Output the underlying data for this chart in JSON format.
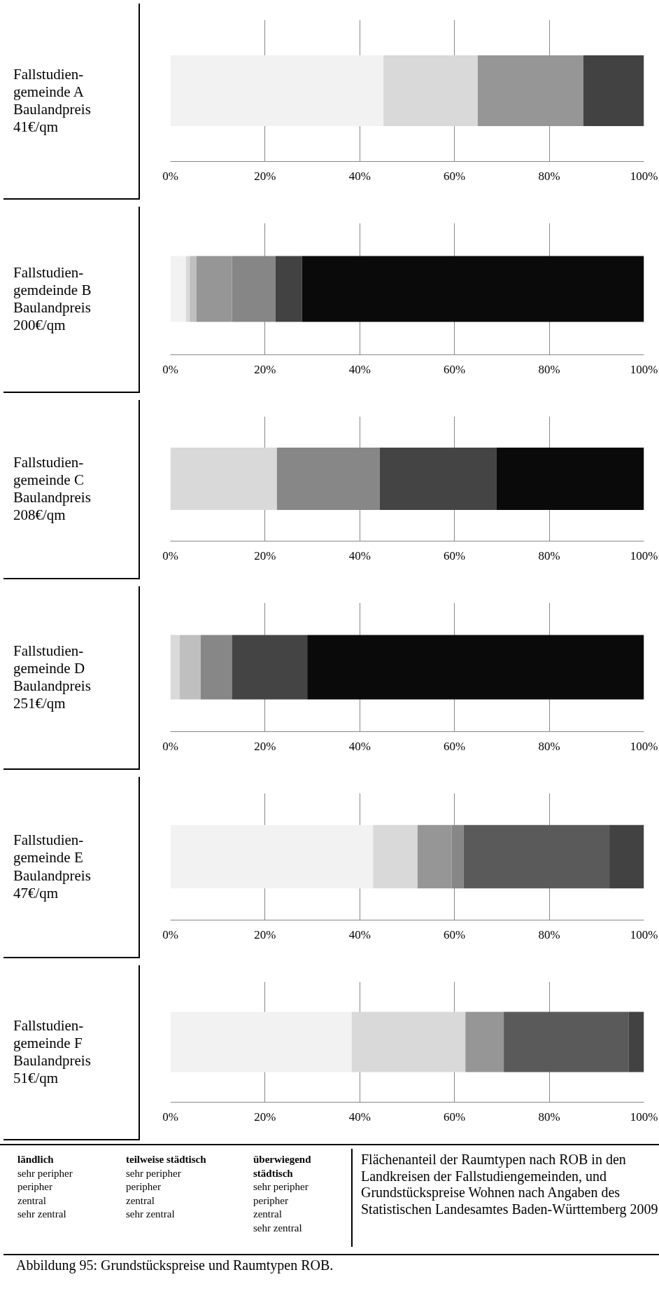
{
  "chart_data": [
    {
      "type": "bar",
      "orientation": "horizontal",
      "stacked": true,
      "title": "Fallstudien-\ngemeinde A\nBaulandpreis\n41€/qm",
      "categories": [
        null
      ],
      "xlim": [
        0,
        100
      ],
      "xticks": [
        {
          "value": 0,
          "label": "0%"
        },
        {
          "value": 20,
          "label": "20%"
        },
        {
          "value": 40,
          "label": "40%"
        },
        {
          "value": 60,
          "label": "60%"
        },
        {
          "value": 80,
          "label": "80%"
        },
        {
          "value": 100,
          "label": "100%"
        }
      ],
      "grid": "x",
      "tick_labels": "x",
      "series": [
        {
          "color": "#f2f2f2",
          "values": [
            45.0
          ]
        },
        {
          "color": "#d9d9d9",
          "values": [
            19.9
          ]
        },
        {
          "color": "#969696",
          "values": [
            22.3
          ]
        },
        {
          "color": "#424242",
          "values": [
            12.8
          ]
        }
      ]
    },
    {
      "type": "bar",
      "orientation": "horizontal",
      "stacked": true,
      "title": "Fallstudien-\ngemdeinde B\nBaulandpreis\n200€/qm",
      "categories": [
        null
      ],
      "xlim": [
        0,
        100
      ],
      "xticks": [
        {
          "value": 0,
          "label": "0%"
        },
        {
          "value": 20,
          "label": "20%"
        },
        {
          "value": 40,
          "label": "40%"
        },
        {
          "value": 60,
          "label": "60%"
        },
        {
          "value": 80,
          "label": "80%"
        },
        {
          "value": 100,
          "label": "100%"
        }
      ],
      "grid": "x",
      "tick_labels": "x",
      "series": [
        {
          "color": "#f2f2f2",
          "values": [
            3.3
          ]
        },
        {
          "color": "#d9d9d9",
          "values": [
            0.8
          ]
        },
        {
          "color": "#bfbfbf",
          "values": [
            1.4
          ]
        },
        {
          "color": "#969696",
          "values": [
            7.5
          ]
        },
        {
          "color": "#868686",
          "values": [
            9.2
          ]
        },
        {
          "color": "#424242",
          "values": [
            5.6
          ]
        },
        {
          "color": "#0a0a0a",
          "values": [
            72.2
          ]
        }
      ]
    },
    {
      "type": "bar",
      "orientation": "horizontal",
      "stacked": true,
      "title": "Fallstudien-\ngemeinde C\nBaulandpreis\n208€/qm",
      "categories": [
        null
      ],
      "xlim": [
        0,
        100
      ],
      "xticks": [
        {
          "value": 0,
          "label": "0%"
        },
        {
          "value": 20,
          "label": "20%"
        },
        {
          "value": 40,
          "label": "40%"
        },
        {
          "value": 60,
          "label": "60%"
        },
        {
          "value": 80,
          "label": "80%"
        },
        {
          "value": 100,
          "label": "100%"
        }
      ],
      "grid": "x",
      "tick_labels": "x",
      "series": [
        {
          "color": "#d9d9d9",
          "values": [
            22.5
          ]
        },
        {
          "color": "#878787",
          "values": [
            21.7
          ]
        },
        {
          "color": "#444444",
          "values": [
            24.7
          ]
        },
        {
          "color": "#0a0a0a",
          "values": [
            31.1
          ]
        }
      ]
    },
    {
      "type": "bar",
      "orientation": "horizontal",
      "stacked": true,
      "title": "Fallstudien-\ngemeinde D\nBaulandpreis\n251€/qm",
      "categories": [
        null
      ],
      "xlim": [
        0,
        100
      ],
      "xticks": [
        {
          "value": 0,
          "label": "0%"
        },
        {
          "value": 20,
          "label": "20%"
        },
        {
          "value": 40,
          "label": "40%"
        },
        {
          "value": 60,
          "label": "60%"
        },
        {
          "value": 80,
          "label": "80%"
        },
        {
          "value": 100,
          "label": "100%"
        }
      ],
      "grid": "x",
      "tick_labels": "x",
      "series": [
        {
          "color": "#d9d9d9",
          "values": [
            2.0
          ]
        },
        {
          "color": "#bfbfbf",
          "values": [
            4.4
          ]
        },
        {
          "color": "#878787",
          "values": [
            6.6
          ]
        },
        {
          "color": "#444444",
          "values": [
            15.9
          ]
        },
        {
          "color": "#0a0a0a",
          "values": [
            71.1
          ]
        }
      ]
    },
    {
      "type": "bar",
      "orientation": "horizontal",
      "stacked": true,
      "title": "Fallstudien-\ngemeinde E\nBaulandpreis\n47€/qm",
      "categories": [
        null
      ],
      "xlim": [
        0,
        100
      ],
      "xticks": [
        {
          "value": 0,
          "label": "0%"
        },
        {
          "value": 20,
          "label": "20%"
        },
        {
          "value": 40,
          "label": "40%"
        },
        {
          "value": 60,
          "label": "60%"
        },
        {
          "value": 80,
          "label": "80%"
        },
        {
          "value": 100,
          "label": "100%"
        }
      ],
      "grid": "x",
      "tick_labels": "x",
      "series": [
        {
          "color": "#f2f2f2",
          "values": [
            42.8
          ]
        },
        {
          "color": "#d9d9d9",
          "values": [
            9.4
          ]
        },
        {
          "color": "#969696",
          "values": [
            7.2
          ]
        },
        {
          "color": "#878787",
          "values": [
            2.5
          ]
        },
        {
          "color": "#5a5a5a",
          "values": [
            30.8
          ]
        },
        {
          "color": "#424242",
          "values": [
            7.3
          ]
        }
      ]
    },
    {
      "type": "bar",
      "orientation": "horizontal",
      "stacked": true,
      "title": "Fallstudien-\ngemeinde F\nBaulandpreis\n51€/qm",
      "categories": [
        null
      ],
      "xlim": [
        0,
        100
      ],
      "xticks": [
        {
          "value": 0,
          "label": "0%"
        },
        {
          "value": 20,
          "label": "20%"
        },
        {
          "value": 40,
          "label": "40%"
        },
        {
          "value": 60,
          "label": "60%"
        },
        {
          "value": 80,
          "label": "80%"
        },
        {
          "value": 100,
          "label": "100%"
        }
      ],
      "grid": "x",
      "tick_labels": "x",
      "series": [
        {
          "color": "#f2f2f2",
          "values": [
            38.3
          ]
        },
        {
          "color": "#d9d9d9",
          "values": [
            24.0
          ]
        },
        {
          "color": "#969696",
          "values": [
            8.1
          ]
        },
        {
          "color": "#5a5a5a",
          "values": [
            26.4
          ]
        },
        {
          "color": "#424242",
          "values": [
            3.2
          ]
        }
      ]
    },
    {
      "type": "other",
      "annotations": [
        "ländlich\nsehr peripher\nperipher\nzentral\nsehr zentral",
        "teilweise städtisch\nsehr peripher\nperipher\nzentral\nsehr zentral",
        "überwiegend städtisch\nsehr peripher\nperipher\nzentral\nsehr zentral",
        "Flächenanteil der Raumtypen nach ROB in den Landkreisen der Fallstudiengemeinden, und Grundstückspreise Wohnen nach Angaben des Statistischen Landesamtes Baden-Württemberg 2009",
        "Abbildung 95: Grundstückspreise und Raumtypen ROB."
      ]
    }
  ]
}
